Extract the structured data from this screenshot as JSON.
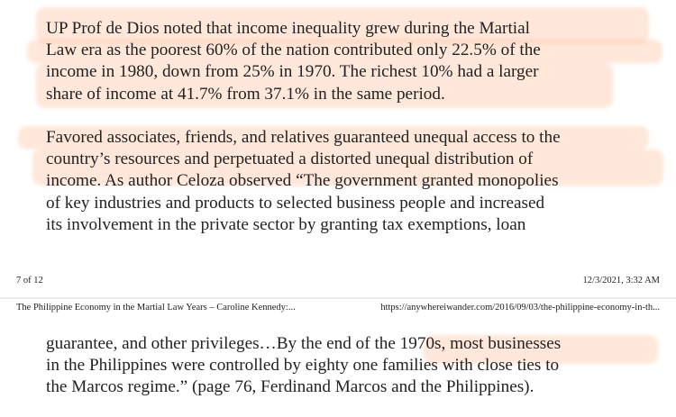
{
  "page_top": {
    "paragraph_1": [
      "UP Prof de Dios noted that income inequality grew during the Martial",
      "Law era as the poorest 60% of the nation contributed only 22.5% of the",
      "income in 1980, down from 25% in 1970. The richest 10% had a larger",
      "share of income at 41.7% from 37.1% in the same period."
    ],
    "paragraph_2": [
      "Favored associates, friends, and relatives guaranteed unequal access to the",
      "country’s resources and perpetuated a distorted unequal distribution of",
      "income. As author Celoza observed “The government granted monopolies",
      "of key industries and products to selected business people and increased",
      "its involvement in the private sector by granting tax exemptions, loan"
    ],
    "footer": {
      "page_number": "7 of 12",
      "timestamp": "12/3/2021, 3:32 AM"
    }
  },
  "page_bottom": {
    "header": {
      "title": "The Philippine Economy in the Martial Law Years – Caroline Kennedy:...",
      "url": "https://anywhereiwander.com/2016/09/03/the-philippine-economy-in-th..."
    },
    "paragraph_1": [
      "guarantee, and other privileges…By the end of the 1970s, most businesses",
      "in the Philippines were controlled by eighty one families with close ties to",
      "the Marcos regime.” (page 76, Ferdinand Marcos and the Philippines)."
    ]
  },
  "colors": {
    "background": "#ebebeb",
    "page": "#ffffff",
    "text": "#222222",
    "highlight": "#ffa878"
  }
}
